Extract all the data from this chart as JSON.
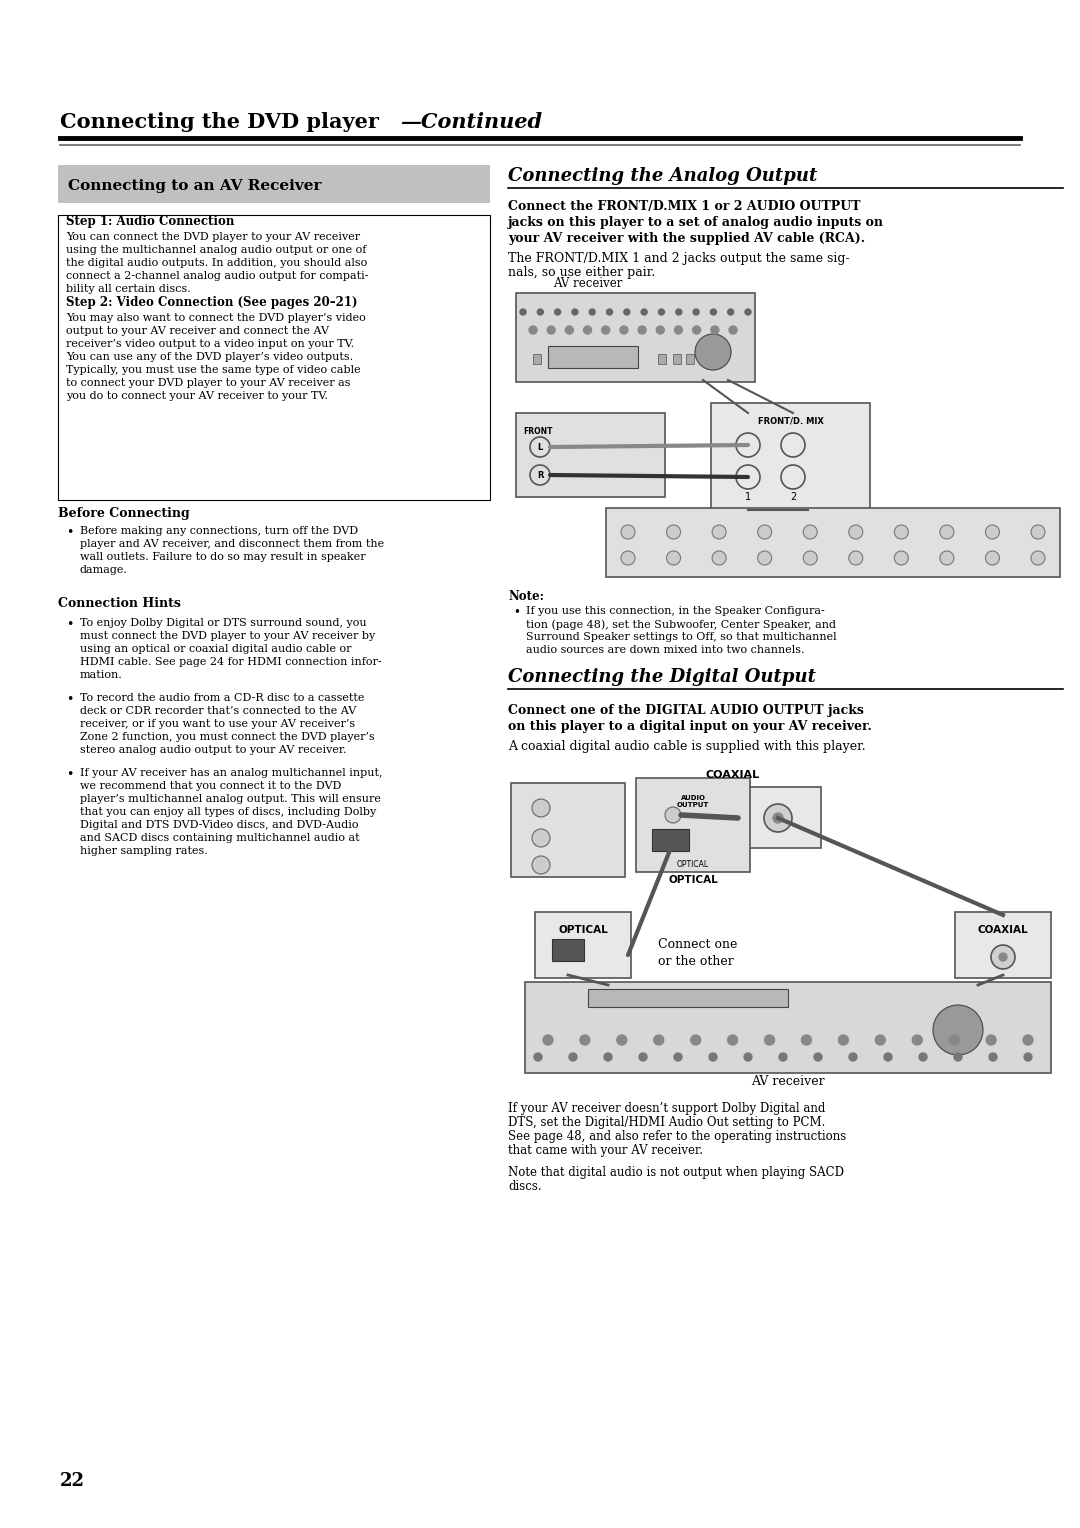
{
  "bg_color": "#ffffff",
  "page_number": "22",
  "header_bold": "Connecting the DVD player",
  "header_italic": "—Continued",
  "left_section_title": "Connecting to an AV Receiver",
  "step1_title": "Step 1: Audio Connection",
  "step1_body": "You can connect the DVD player to your AV receiver\nusing the multichannel analog audio output or one of\nthe digital audio outputs. In addition, you should also\nconnect a 2-channel analog audio output for compati-\nbility all certain discs.",
  "step2_title": "Step 2: Video Connection (See pages 20–21)",
  "step2_body": "You may also want to connect the DVD player’s video\noutput to your AV receiver and connect the AV\nreceiver’s video output to a video input on your TV.\nYou can use any of the DVD player’s video outputs.\nTypically, you must use the same type of video cable\nto connect your DVD player to your AV receiver as\nyou do to connect your AV receiver to your TV.",
  "before_title": "Before Connecting",
  "before_bullet": "Before making any connections, turn off the DVD\nplayer and AV receiver, and disconnect them from the\nwall outlets. Failure to do so may result in speaker\ndamage.",
  "hints_title": "Connection Hints",
  "hints_bullets": [
    "To enjoy Dolby Digital or DTS surround sound, you\nmust connect the DVD player to your AV receiver by\nusing an optical or coaxial digital audio cable or\nHDMI cable. See page 24 for HDMI connection infor-\nmation.",
    "To record the audio from a CD-R disc to a cassette\ndeck or CDR recorder that’s connected to the AV\nreceiver, or if you want to use your AV receiver’s\nZone 2 function, you must connect the DVD player’s\nstereo analog audio output to your AV receiver.",
    "If your AV receiver has an analog multichannel input,\nwe recommend that you connect it to the DVD\nplayer’s multichannel analog output. This will ensure\nthat you can enjoy all types of discs, including Dolby\nDigital and DTS DVD-Video discs, and DVD-Audio\nand SACD discs containing multichannel audio at\nhigher sampling rates."
  ],
  "analog_section_title": "Connecting the Analog Output",
  "analog_bold": "Connect the FRONT/D.MIX 1 or 2 AUDIO OUTPUT\njacks on this player to a set of analog audio inputs on\nyour AV receiver with the supplied AV cable (RCA).",
  "analog_normal": "The FRONT/D.MIX 1 and 2 jacks output the same sig-\nnals, so use either pair.",
  "av_receiver_label": "AV receiver",
  "front_d_mix_label": "FRONT/D. MIX",
  "front_label": "FRONT",
  "l_label": "L",
  "r_label": "R",
  "num_labels": "1        2",
  "note_title": "Note:",
  "note_bullet": "If you use this connection, in the Speaker Configura-\ntion (page 48), set the Subwoofer, Center Speaker, and\nSurround Speaker settings to Off, so that multichannel\naudio sources are down mixed into two channels.",
  "digital_section_title": "Connecting the Digital Output",
  "digital_bold": "Connect one of the DIGITAL AUDIO OUTPUT jacks\non this player to a digital input on your AV receiver.",
  "digital_normal": "A coaxial digital audio cable is supplied with this player.",
  "coaxial_label": "COAXIAL",
  "optical_label": "OPTICAL",
  "connect_one_label": "Connect one\nor the other",
  "av_receiver_label2": "AV receiver",
  "digital_note1": "If your AV receiver doesn’t support Dolby Digital and\nDTS, set the Digital/HDMI Audio Out setting to PCM.\nSee page 48, and also refer to the operating instructions\nthat came with your AV receiver.",
  "digital_note2": "Note that digital audio is not output when playing SACD\ndiscs."
}
